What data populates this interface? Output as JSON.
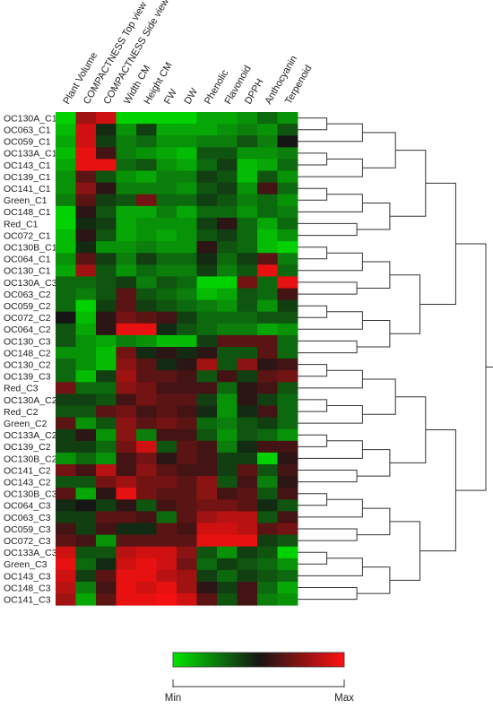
{
  "chart_data": {
    "type": "heatmap",
    "columns": [
      "Plant Volume",
      "COMPACTNESS Top view",
      "COMPACTNESS Side view",
      "Width CM",
      "Height CM",
      "FW",
      "DW",
      "Phenolic",
      "Flavonoid",
      "DPPH",
      "Anthocyanin",
      "Terpenoid"
    ],
    "rows": [
      "OC130A_C1",
      "OC063_C1",
      "OC059_C1",
      "OC133A_C1",
      "OC143_C1",
      "OC139_C1",
      "OC141_C1",
      "Green_C1",
      "OC148_C1",
      "Red_C1",
      "OC072_C1",
      "OC130B_C1",
      "OC064_C1",
      "OC130_C1",
      "OC130A_C3",
      "OC063_C2",
      "OC059_C2",
      "OC072_C2",
      "OC064_C2",
      "OC130_C3",
      "OC148_C2",
      "OC130_C2",
      "OC139_C3",
      "Red_C3",
      "OC130A_C2",
      "Red_C2",
      "Green_C2",
      "OC133A_C2",
      "OC139_C2",
      "OC130B_C2",
      "OC141_C2",
      "OC143_C2",
      "OC130B_C3",
      "OC064_C3",
      "OC063_C3",
      "OC059_C3",
      "OC072_C3",
      "OC133A_C3",
      "Green_C3",
      "OC143_C3",
      "OC148_C3",
      "OC141_C3"
    ],
    "values": [
      [
        -0.9,
        0.6,
        0.8,
        -0.9,
        -0.9,
        -0.9,
        -0.9,
        -0.7,
        -0.7,
        -0.6,
        -0.4,
        -0.6
      ],
      [
        -0.8,
        0.8,
        -0.1,
        -0.6,
        -0.2,
        -0.7,
        -0.7,
        -0.7,
        -0.6,
        -0.5,
        -0.6,
        -0.3
      ],
      [
        -0.7,
        0.8,
        -0.2,
        -0.5,
        -0.4,
        -0.6,
        -0.6,
        -0.5,
        -0.5,
        -0.3,
        -0.5,
        0.0
      ],
      [
        -0.8,
        0.9,
        0.2,
        -0.5,
        -0.6,
        -0.7,
        -0.8,
        -0.3,
        -0.3,
        -0.6,
        -0.6,
        -0.5
      ],
      [
        -0.7,
        0.9,
        0.9,
        -0.4,
        -0.3,
        -0.6,
        -0.7,
        -0.4,
        -0.2,
        -0.8,
        -0.7,
        -0.4
      ],
      [
        -0.6,
        0.3,
        -0.3,
        -0.6,
        -0.7,
        -0.5,
        -0.5,
        -0.2,
        -0.3,
        -0.8,
        -0.3,
        -0.6
      ],
      [
        -0.6,
        0.5,
        0.1,
        -0.5,
        -0.5,
        -0.5,
        -0.6,
        -0.3,
        -0.2,
        -0.6,
        0.2,
        -0.4
      ],
      [
        -0.5,
        0.3,
        -0.2,
        -0.3,
        0.4,
        -0.4,
        -0.4,
        -0.2,
        -0.3,
        -0.5,
        -0.4,
        -0.6
      ],
      [
        -0.9,
        0.1,
        -0.3,
        -0.7,
        -0.7,
        -0.5,
        -0.7,
        -0.4,
        -0.4,
        -0.6,
        -0.4,
        -0.5
      ],
      [
        -0.9,
        -0.1,
        -0.2,
        -0.7,
        -0.6,
        -0.6,
        -0.6,
        -0.2,
        0.1,
        -0.4,
        -0.7,
        -0.4
      ],
      [
        -0.8,
        0.1,
        -0.3,
        -0.7,
        -0.6,
        -0.7,
        -0.6,
        -0.3,
        -0.2,
        -0.4,
        -0.8,
        -0.6
      ],
      [
        -0.8,
        -0.1,
        -0.6,
        -0.6,
        -0.5,
        -0.6,
        -0.6,
        0.1,
        -0.3,
        -0.4,
        -0.8,
        -0.9
      ],
      [
        -0.6,
        0.3,
        -0.2,
        -0.5,
        -0.2,
        -0.4,
        -0.4,
        -0.1,
        -0.4,
        -0.2,
        0.3,
        -0.5
      ],
      [
        -0.7,
        0.6,
        -0.3,
        -0.6,
        -0.4,
        -0.5,
        -0.5,
        -0.2,
        -0.5,
        -0.3,
        0.9,
        -0.4
      ],
      [
        -0.4,
        -0.4,
        -0.3,
        -0.2,
        -0.5,
        -0.3,
        -0.4,
        -0.9,
        -0.9,
        0.4,
        -0.4,
        0.9
      ],
      [
        -0.4,
        -0.5,
        -0.3,
        0.3,
        -0.3,
        -0.4,
        -0.5,
        -0.8,
        -0.7,
        -0.3,
        -0.4,
        0.2
      ],
      [
        -0.4,
        -0.9,
        -0.2,
        0.3,
        -0.2,
        -0.3,
        -0.4,
        -0.5,
        -0.6,
        -0.3,
        -0.6,
        -0.2
      ],
      [
        0.0,
        -0.8,
        0.1,
        0.4,
        0.3,
        0.2,
        -0.2,
        -0.4,
        -0.4,
        -0.4,
        -0.3,
        -0.3
      ],
      [
        -0.3,
        -0.7,
        0.1,
        0.9,
        0.9,
        -0.1,
        -0.3,
        -0.4,
        -0.5,
        -0.5,
        -0.7,
        -0.6
      ],
      [
        -0.3,
        -0.6,
        -0.7,
        -0.5,
        -0.6,
        -0.8,
        -0.8,
        -0.2,
        0.3,
        0.3,
        0.3,
        -0.4
      ],
      [
        -0.6,
        -0.6,
        -0.8,
        0.4,
        -0.1,
        0.1,
        -0.1,
        0.1,
        -0.3,
        -0.3,
        0.3,
        -0.4
      ],
      [
        -0.4,
        -0.6,
        -0.8,
        0.5,
        0.3,
        -0.1,
        0.1,
        0.6,
        -0.3,
        0.5,
        0.1,
        0.2
      ],
      [
        -0.4,
        -0.8,
        -0.2,
        0.6,
        0.3,
        0.3,
        0.2,
        -0.3,
        0.2,
        -0.2,
        0.3,
        0.4
      ],
      [
        0.4,
        -0.4,
        -0.4,
        0.5,
        0.4,
        0.2,
        0.2,
        0.2,
        -0.4,
        0.1,
        0.2,
        -0.3
      ],
      [
        -0.2,
        -0.2,
        -0.3,
        0.2,
        0.4,
        0.3,
        0.3,
        -0.2,
        -0.6,
        0.1,
        -0.2,
        -0.4
      ],
      [
        -0.3,
        -0.3,
        0.3,
        0.4,
        0.2,
        0.3,
        0.2,
        -0.1,
        -0.6,
        -0.1,
        0.2,
        -0.4
      ],
      [
        0.3,
        -0.6,
        -0.3,
        0.5,
        0.3,
        0.4,
        0.3,
        -0.4,
        -0.5,
        -0.3,
        -0.2,
        -0.4
      ],
      [
        -0.2,
        0.1,
        -0.6,
        0.5,
        -0.5,
        0.2,
        0.2,
        -0.3,
        -0.6,
        -0.3,
        -0.4,
        -0.6
      ],
      [
        -0.2,
        -0.2,
        -0.4,
        0.4,
        0.8,
        -0.3,
        0.3,
        0.2,
        -0.5,
        -0.1,
        0.2,
        0.2
      ],
      [
        -0.6,
        -0.4,
        -0.6,
        0.2,
        0.4,
        0.1,
        0.3,
        0.2,
        -0.2,
        -0.2,
        -0.9,
        0.1
      ],
      [
        0.4,
        0.2,
        0.7,
        0.2,
        0.5,
        0.3,
        0.2,
        0.2,
        -0.2,
        0.3,
        -0.3,
        0.2
      ],
      [
        -0.3,
        -0.3,
        0.4,
        0.6,
        0.4,
        0.4,
        0.3,
        0.5,
        -0.3,
        0.2,
        -0.5,
        0.1
      ],
      [
        0.3,
        -0.7,
        0.1,
        0.9,
        0.4,
        0.3,
        0.3,
        0.5,
        0.2,
        0.3,
        -0.3,
        0.2
      ],
      [
        -0.1,
        0.0,
        -0.2,
        0.1,
        -0.3,
        0.2,
        0.3,
        0.4,
        0.4,
        0.3,
        -0.1,
        -0.3
      ],
      [
        -0.2,
        -0.2,
        0.3,
        0.3,
        0.2,
        -0.4,
        0.3,
        0.6,
        0.7,
        0.7,
        -0.3,
        0.2
      ],
      [
        0.2,
        -0.2,
        0.2,
        -0.1,
        -0.1,
        0.3,
        0.2,
        0.8,
        0.8,
        0.7,
        0.3,
        0.4
      ],
      [
        0.3,
        0.2,
        -0.6,
        0.3,
        0.3,
        0.3,
        0.3,
        0.9,
        0.9,
        0.9,
        -0.2,
        -0.3
      ],
      [
        0.8,
        -0.3,
        -0.3,
        0.7,
        0.8,
        0.8,
        0.5,
        -0.3,
        -0.6,
        -0.2,
        -0.3,
        -0.9
      ],
      [
        0.9,
        -0.4,
        -0.1,
        0.8,
        0.9,
        0.8,
        0.4,
        -0.4,
        -0.2,
        -0.3,
        -0.4,
        -0.6
      ],
      [
        0.8,
        -0.2,
        0.3,
        0.9,
        0.9,
        0.7,
        0.6,
        -0.2,
        -0.4,
        -0.2,
        -0.3,
        -0.4
      ],
      [
        0.7,
        -0.5,
        0.2,
        0.9,
        0.8,
        0.9,
        0.6,
        0.1,
        -0.2,
        0.2,
        -0.4,
        -0.7
      ],
      [
        0.6,
        -0.7,
        0.3,
        0.9,
        0.9,
        0.95,
        0.8,
        0.3,
        -0.3,
        0.2,
        -0.5,
        -0.6
      ]
    ],
    "color_scale": {
      "min_label": "Min",
      "max_label": "Max",
      "min_color": "#00e600",
      "mid_color": "#151515",
      "max_color": "#ff1010"
    },
    "dendrogram": "rows clustered (right side)"
  }
}
